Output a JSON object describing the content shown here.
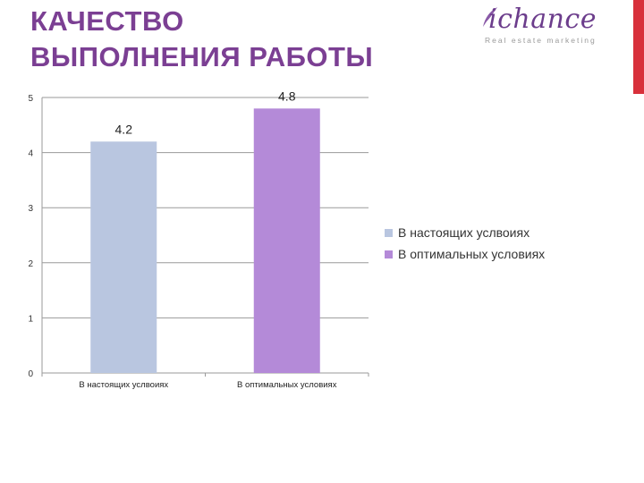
{
  "slide": {
    "title_line1": "КАЧЕСТВО",
    "title_line2": "ВЫПОЛНЕНИЯ РАБОТЫ"
  },
  "logo": {
    "wordmark": "ichance",
    "tagline": "Real estate marketing",
    "color": "#6c3d8c"
  },
  "chart_data": {
    "type": "bar",
    "categories": [
      "В настоящих услвоиях",
      "В оптимальных условиях"
    ],
    "values": [
      4.2,
      4.8
    ],
    "data_labels": [
      "4.2",
      "4.8"
    ],
    "colors": [
      "#b9c6e0",
      "#b48ad8"
    ],
    "legend": [
      "В настоящих услвоиях",
      "В оптимальных условиях"
    ],
    "legend_position": "right",
    "ylim": [
      0,
      5
    ],
    "yticks": [
      "0",
      "1",
      "2",
      "3",
      "4",
      "5"
    ],
    "grid": true,
    "title": "",
    "xlabel": "",
    "ylabel": ""
  }
}
